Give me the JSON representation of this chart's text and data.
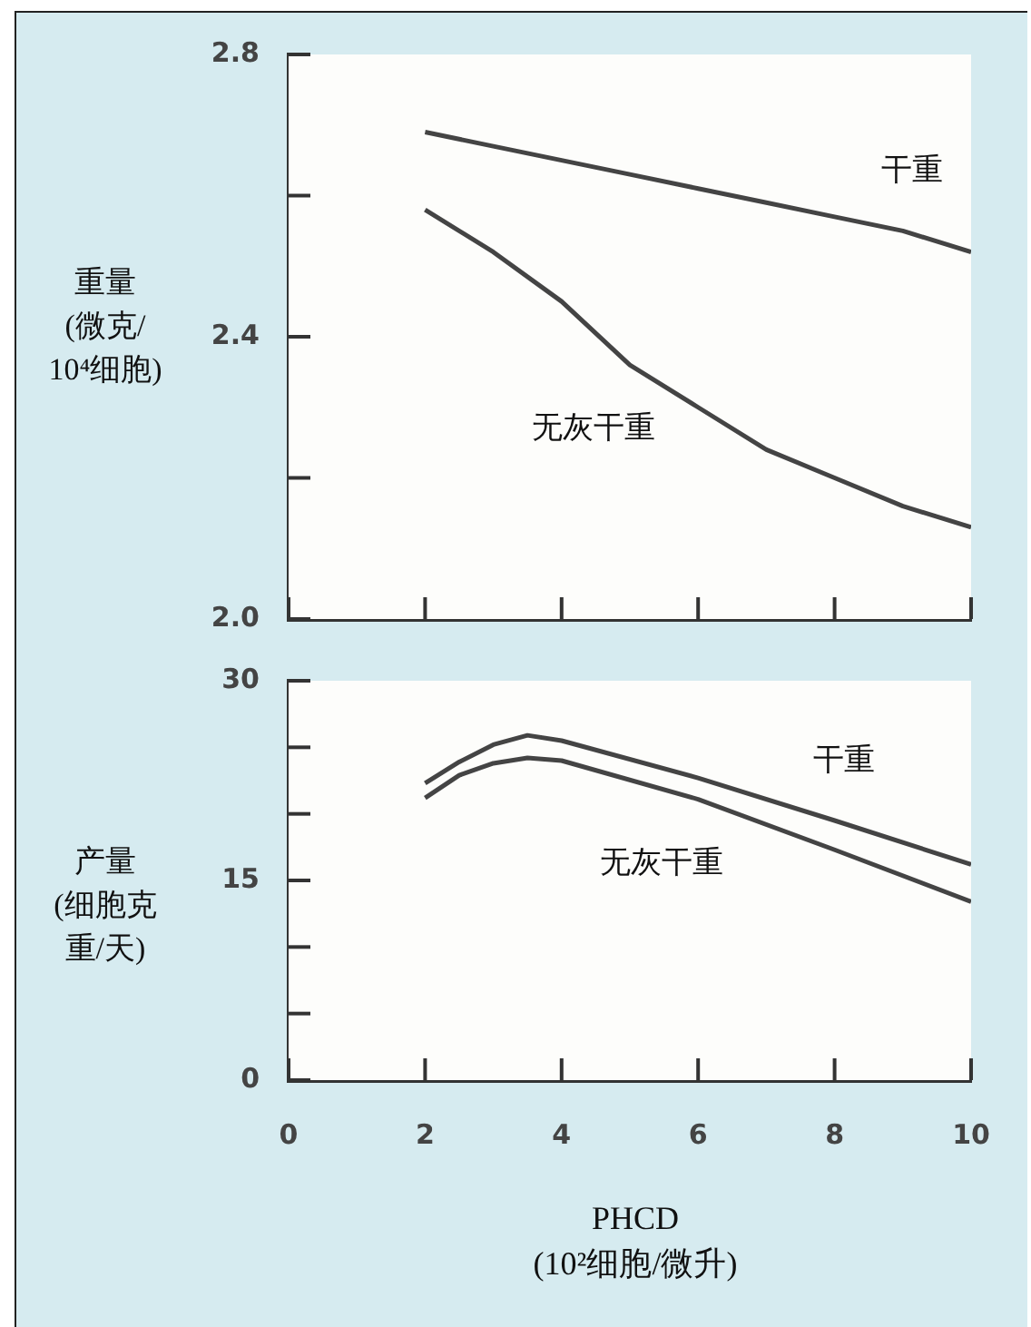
{
  "chart_data": [
    {
      "type": "line",
      "ylabel": "重量\n(微克/\n10⁴细胞)",
      "x": [
        2,
        3,
        4,
        5,
        6,
        7,
        8,
        9,
        10
      ],
      "series": [
        {
          "name": "干重",
          "color": "#444444",
          "values": [
            2.69,
            2.67,
            2.65,
            2.63,
            2.61,
            2.59,
            2.57,
            2.55,
            2.52
          ]
        },
        {
          "name": "无灰干重",
          "color": "#444444",
          "values": [
            2.58,
            2.52,
            2.45,
            2.36,
            2.3,
            2.24,
            2.2,
            2.16,
            2.13
          ]
        }
      ],
      "xlim": [
        0,
        10
      ],
      "xticks": [
        0,
        2,
        4,
        6,
        8,
        10
      ],
      "ylim": [
        2.0,
        2.8
      ],
      "yticks": [
        {
          "value": 2.0,
          "label": "2.0"
        },
        {
          "value": 2.2,
          "label": null
        },
        {
          "value": 2.4,
          "label": "2.4"
        },
        {
          "value": 2.6,
          "label": null
        },
        {
          "value": 2.8,
          "label": "2.8"
        }
      ],
      "tick_labels": "y",
      "grid": false
    },
    {
      "type": "line",
      "ylabel": "产量\n(细胞克重/天)",
      "xlabel": "PHCD\n(10²细胞/微升)",
      "x": [
        2,
        2.5,
        3,
        3.5,
        4,
        6,
        8,
        10
      ],
      "series": [
        {
          "name": "干重",
          "color": "#444444",
          "values": [
            22.3,
            23.9,
            25.2,
            25.9,
            25.5,
            22.7,
            19.5,
            16.2
          ]
        },
        {
          "name": "无灰干重",
          "color": "#444444",
          "values": [
            21.2,
            22.9,
            23.8,
            24.2,
            24.0,
            21.1,
            17.3,
            13.4
          ]
        }
      ],
      "xlim": [
        0,
        10
      ],
      "xticks": [
        0,
        2,
        4,
        6,
        8,
        10
      ],
      "ylim": [
        0,
        30
      ],
      "yticks": [
        0,
        {
          "value": 5,
          "label": null
        },
        {
          "value": 10,
          "label": null
        },
        15,
        {
          "value": 20,
          "label": null
        },
        {
          "value": 25,
          "label": null
        },
        30
      ],
      "grid": false
    }
  ]
}
